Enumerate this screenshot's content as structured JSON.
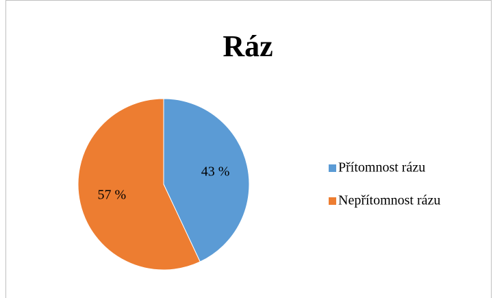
{
  "chart_data": {
    "type": "pie",
    "title": "Ráz",
    "categories": [
      "Přítomnost rázu",
      "Nepřítomnost rázu"
    ],
    "values": [
      43,
      57
    ],
    "value_labels": [
      "43 %",
      "57 %"
    ],
    "colors": [
      "#5b9bd5",
      "#ed7d31"
    ],
    "legend": "right"
  }
}
